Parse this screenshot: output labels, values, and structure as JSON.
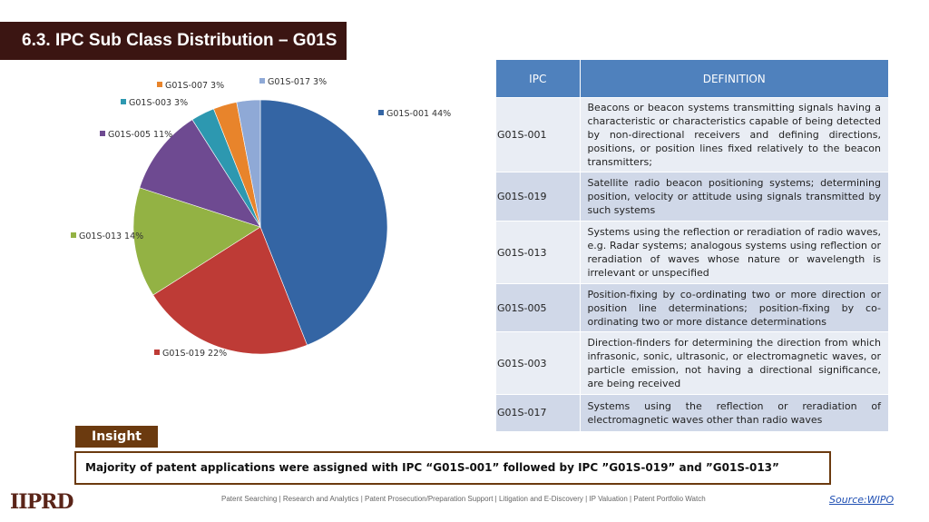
{
  "header": {
    "title": "6.3. IPC Sub Class Distribution – G01S"
  },
  "chart_data": {
    "type": "pie",
    "slices": [
      {
        "label": "G01S-001",
        "value": 44,
        "display": "G01S-001 44%",
        "color": "#3465a4"
      },
      {
        "label": "G01S-019",
        "value": 22,
        "display": "G01S-019 22%",
        "color": "#be3b36"
      },
      {
        "label": "G01S-013",
        "value": 14,
        "display": "G01S-013 14%",
        "color": "#93b244"
      },
      {
        "label": "G01S-005",
        "value": 11,
        "display": "G01S-005 11%",
        "color": "#6e4a91"
      },
      {
        "label": "G01S-003",
        "value": 3,
        "display": "G01S-003 3%",
        "color": "#2d98b0"
      },
      {
        "label": "G01S-007",
        "value": 3,
        "display": "G01S-007 3%",
        "color": "#e8842b"
      },
      {
        "label": "G01S-017",
        "value": 3,
        "display": "G01S-017 3%",
        "color": "#8fa9d6"
      }
    ]
  },
  "table": {
    "headers": [
      "IPC",
      "DEFINITION"
    ],
    "rows": [
      {
        "ipc": "G01S-001",
        "definition": "Beacons or beacon systems transmitting signals having a characteristic or characteristics capable of being detected by non-directional receivers and defining directions, positions, or position lines fixed relatively to the beacon transmitters;"
      },
      {
        "ipc": "G01S-019",
        "definition": "Satellite radio beacon positioning systems; determining position, velocity or attitude using signals transmitted by such systems"
      },
      {
        "ipc": "G01S-013",
        "definition": "Systems using the reflection or reradiation of radio waves, e.g. Radar systems; analogous systems using reflection or reradiation of waves whose nature or wavelength is irrelevant or unspecified"
      },
      {
        "ipc": "G01S-005",
        "definition": "Position-fixing by co-ordinating two or more direction or position line determinations; position-fixing by co-ordinating two or more distance determinations"
      },
      {
        "ipc": "G01S-003",
        "definition": "Direction-finders for determining the direction from which infrasonic, sonic, ultrasonic, or electromagnetic waves, or particle emission, not having a directional significance, are being received"
      },
      {
        "ipc": "G01S-017",
        "definition": "Systems using the reflection or reradiation of electromagnetic waves other than radio waves"
      }
    ]
  },
  "insight": {
    "tab_label": "Insight",
    "text": "Majority of patent applications were assigned with IPC “G01S-001” followed by IPC ”G01S-019” and ”G01S-013”"
  },
  "footer": {
    "logo": "IIPRD",
    "services": "Patent Searching | Research and Analytics | Patent Prosecution/Preparation Support | Litigation and E-Discovery | IP Valuation | Patent Portfolio Watch",
    "source": "Source:WIPO"
  }
}
